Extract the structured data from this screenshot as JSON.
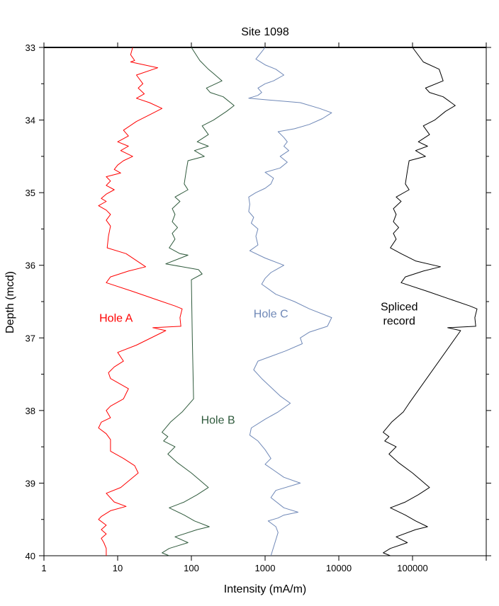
{
  "chart_data": {
    "type": "line",
    "title": "Site 1098",
    "xlabel": "Intensity (mA/m)",
    "ylabel": "Depth (mcd)",
    "x_scale": "log",
    "xlim": [
      1,
      1000000
    ],
    "ylim": [
      33,
      40
    ],
    "y_inverted": true,
    "x_ticks": [
      {
        "value": 1,
        "label": "1"
      },
      {
        "value": 10,
        "label": "10"
      },
      {
        "value": 100,
        "label": "100"
      },
      {
        "value": 1000,
        "label": "1000"
      },
      {
        "value": 10000,
        "label": "10000"
      },
      {
        "value": 100000,
        "label": "100000"
      },
      {
        "value": 1000000,
        "label": ""
      }
    ],
    "y_ticks": [
      {
        "value": 33,
        "label": "33"
      },
      {
        "value": 34,
        "label": "34"
      },
      {
        "value": 35,
        "label": "35"
      },
      {
        "value": 36,
        "label": "36"
      },
      {
        "value": 37,
        "label": "37"
      },
      {
        "value": 38,
        "label": "38"
      },
      {
        "value": 39,
        "label": "39"
      },
      {
        "value": 40,
        "label": "40"
      }
    ],
    "grid": false,
    "series": [
      {
        "name": "Hole A",
        "color": "#ff0000",
        "label_pos": {
          "x": 9.5,
          "y": 36.78
        },
        "points": [
          [
            16,
            33.0
          ],
          [
            15,
            33.1
          ],
          [
            17,
            33.18
          ],
          [
            15,
            33.2
          ],
          [
            35,
            33.28
          ],
          [
            18,
            33.38
          ],
          [
            22,
            33.5
          ],
          [
            19,
            33.56
          ],
          [
            23,
            33.64
          ],
          [
            18,
            33.7
          ],
          [
            27,
            33.76
          ],
          [
            40,
            33.84
          ],
          [
            28,
            33.92
          ],
          [
            18,
            34.02
          ],
          [
            12,
            34.14
          ],
          [
            14,
            34.22
          ],
          [
            10,
            34.3
          ],
          [
            14,
            34.36
          ],
          [
            11,
            34.42
          ],
          [
            16,
            34.5
          ],
          [
            12,
            34.56
          ],
          [
            10,
            34.62
          ],
          [
            9,
            34.68
          ],
          [
            11,
            34.73
          ],
          [
            7,
            34.78
          ],
          [
            8,
            34.84
          ],
          [
            7,
            34.9
          ],
          [
            9,
            34.96
          ],
          [
            7,
            35.02
          ],
          [
            6,
            35.08
          ],
          [
            7,
            35.12
          ],
          [
            5.5,
            35.18
          ],
          [
            7,
            35.24
          ],
          [
            8,
            35.3
          ],
          [
            7,
            35.38
          ],
          [
            8,
            35.46
          ],
          [
            7.5,
            35.6
          ],
          [
            7.2,
            35.76
          ],
          [
            13,
            35.84
          ],
          [
            24,
            36.02
          ],
          [
            14,
            36.08
          ],
          [
            8,
            36.16
          ],
          [
            7,
            36.24
          ],
          [
            16,
            36.36
          ],
          [
            35,
            36.48
          ],
          [
            60,
            36.56
          ],
          [
            75,
            36.6
          ],
          [
            70,
            36.72
          ],
          [
            72,
            36.84
          ],
          [
            30,
            36.86
          ],
          [
            45,
            36.9
          ],
          [
            18,
            37.1
          ],
          [
            10,
            37.2
          ],
          [
            12,
            37.32
          ],
          [
            9,
            37.4
          ],
          [
            7.5,
            37.48
          ],
          [
            8,
            37.56
          ],
          [
            14,
            37.7
          ],
          [
            12,
            37.84
          ],
          [
            8,
            37.94
          ],
          [
            7,
            38.0
          ],
          [
            8,
            38.1
          ],
          [
            6,
            38.16
          ],
          [
            5.5,
            38.24
          ],
          [
            7,
            38.32
          ],
          [
            8,
            38.4
          ],
          [
            8,
            38.56
          ],
          [
            12,
            38.66
          ],
          [
            17,
            38.76
          ],
          [
            19,
            38.86
          ],
          [
            11,
            39.06
          ],
          [
            7,
            39.14
          ],
          [
            9,
            39.26
          ],
          [
            13,
            39.32
          ],
          [
            8,
            39.38
          ],
          [
            6,
            39.46
          ],
          [
            5.5,
            39.5
          ],
          [
            7,
            39.58
          ],
          [
            6,
            39.64
          ],
          [
            7,
            39.7
          ],
          [
            6,
            39.76
          ],
          [
            6.5,
            39.82
          ],
          [
            7,
            39.9
          ],
          [
            7,
            40.0
          ]
        ]
      },
      {
        "name": "Hole B",
        "color": "#2f5a3c",
        "label_pos": {
          "x": 230,
          "y": 38.18
        },
        "points": [
          [
            100,
            33.0
          ],
          [
            130,
            33.18
          ],
          [
            170,
            33.3
          ],
          [
            200,
            33.36
          ],
          [
            260,
            33.46
          ],
          [
            160,
            33.56
          ],
          [
            180,
            33.62
          ],
          [
            270,
            33.68
          ],
          [
            380,
            33.8
          ],
          [
            300,
            33.88
          ],
          [
            200,
            34.0
          ],
          [
            140,
            34.08
          ],
          [
            170,
            34.2
          ],
          [
            120,
            34.3
          ],
          [
            170,
            34.36
          ],
          [
            110,
            34.42
          ],
          [
            150,
            34.5
          ],
          [
            90,
            34.56
          ],
          [
            85,
            34.7
          ],
          [
            80,
            34.88
          ],
          [
            90,
            34.96
          ],
          [
            60,
            35.06
          ],
          [
            70,
            35.12
          ],
          [
            55,
            35.22
          ],
          [
            60,
            35.3
          ],
          [
            55,
            35.4
          ],
          [
            65,
            35.48
          ],
          [
            55,
            35.56
          ],
          [
            60,
            35.64
          ],
          [
            50,
            35.76
          ],
          [
            70,
            35.84
          ],
          [
            90,
            35.86
          ],
          [
            45,
            35.98
          ],
          [
            125,
            36.06
          ],
          [
            140,
            36.12
          ],
          [
            100,
            36.2
          ],
          [
            103,
            37.0
          ],
          [
            107,
            37.84
          ],
          [
            75,
            38.02
          ],
          [
            52,
            38.16
          ],
          [
            40,
            38.3
          ],
          [
            48,
            38.36
          ],
          [
            42,
            38.42
          ],
          [
            60,
            38.5
          ],
          [
            48,
            38.6
          ],
          [
            65,
            38.72
          ],
          [
            100,
            38.86
          ],
          [
            130,
            38.96
          ],
          [
            170,
            39.06
          ],
          [
            120,
            39.16
          ],
          [
            80,
            39.26
          ],
          [
            50,
            39.34
          ],
          [
            80,
            39.44
          ],
          [
            110,
            39.52
          ],
          [
            175,
            39.6
          ],
          [
            120,
            39.64
          ],
          [
            60,
            39.74
          ],
          [
            90,
            39.82
          ],
          [
            50,
            39.9
          ],
          [
            40,
            39.96
          ],
          [
            50,
            40.0
          ]
        ]
      },
      {
        "name": "Hole C",
        "color": "#6f88b7",
        "label_pos": {
          "x": 1200,
          "y": 36.72
        },
        "points": [
          [
            1000,
            33.0
          ],
          [
            900,
            33.06
          ],
          [
            750,
            33.16
          ],
          [
            1000,
            33.24
          ],
          [
            1400,
            33.3
          ],
          [
            1800,
            33.38
          ],
          [
            1300,
            33.46
          ],
          [
            1000,
            33.5
          ],
          [
            800,
            33.56
          ],
          [
            900,
            33.62
          ],
          [
            800,
            33.66
          ],
          [
            600,
            33.7
          ],
          [
            3000,
            33.76
          ],
          [
            5500,
            33.84
          ],
          [
            8000,
            33.9
          ],
          [
            6000,
            33.98
          ],
          [
            4000,
            34.06
          ],
          [
            2500,
            34.12
          ],
          [
            1500,
            34.16
          ],
          [
            1800,
            34.24
          ],
          [
            2000,
            34.3
          ],
          [
            1800,
            34.36
          ],
          [
            2100,
            34.42
          ],
          [
            1600,
            34.5
          ],
          [
            2000,
            34.58
          ],
          [
            1600,
            34.66
          ],
          [
            1000,
            34.72
          ],
          [
            1300,
            34.8
          ],
          [
            1200,
            34.88
          ],
          [
            1000,
            34.94
          ],
          [
            750,
            35.0
          ],
          [
            600,
            35.06
          ],
          [
            620,
            35.16
          ],
          [
            600,
            35.26
          ],
          [
            700,
            35.34
          ],
          [
            650,
            35.42
          ],
          [
            800,
            35.5
          ],
          [
            750,
            35.6
          ],
          [
            800,
            35.72
          ],
          [
            620,
            35.8
          ],
          [
            1000,
            35.9
          ],
          [
            1800,
            36.0
          ],
          [
            1200,
            36.1
          ],
          [
            1000,
            36.18
          ],
          [
            900,
            36.26
          ],
          [
            1400,
            36.4
          ],
          [
            2500,
            36.5
          ],
          [
            4000,
            36.6
          ],
          [
            8000,
            36.72
          ],
          [
            7000,
            36.84
          ],
          [
            4000,
            36.92
          ],
          [
            3000,
            37.0
          ],
          [
            3200,
            37.08
          ],
          [
            1900,
            37.18
          ],
          [
            800,
            37.32
          ],
          [
            700,
            37.44
          ],
          [
            900,
            37.56
          ],
          [
            1200,
            37.68
          ],
          [
            1600,
            37.8
          ],
          [
            2200,
            37.9
          ],
          [
            1500,
            38.02
          ],
          [
            1000,
            38.12
          ],
          [
            650,
            38.24
          ],
          [
            620,
            38.34
          ],
          [
            800,
            38.42
          ],
          [
            1000,
            38.54
          ],
          [
            1200,
            38.66
          ],
          [
            1000,
            38.74
          ],
          [
            1300,
            38.82
          ],
          [
            1800,
            38.92
          ],
          [
            3000,
            39.0
          ],
          [
            1400,
            39.1
          ],
          [
            1200,
            39.2
          ],
          [
            1800,
            39.34
          ],
          [
            2800,
            39.4
          ],
          [
            1800,
            39.44
          ],
          [
            1500,
            39.48
          ],
          [
            1100,
            39.52
          ],
          [
            1400,
            39.6
          ],
          [
            1500,
            39.68
          ],
          [
            1400,
            39.78
          ],
          [
            1200,
            40.0
          ]
        ]
      },
      {
        "name": "Spliced record",
        "label_lines": [
          "Spliced",
          "record"
        ],
        "color": "#000000",
        "label_pos": {
          "x": 66000,
          "y": 36.72
        },
        "points": [
          [
            100000,
            33.0
          ],
          [
            140000,
            33.2
          ],
          [
            230000,
            33.3
          ],
          [
            260000,
            33.46
          ],
          [
            150000,
            33.56
          ],
          [
            170000,
            33.62
          ],
          [
            260000,
            33.68
          ],
          [
            380000,
            33.8
          ],
          [
            280000,
            33.88
          ],
          [
            200000,
            34.0
          ],
          [
            140000,
            34.08
          ],
          [
            170000,
            34.2
          ],
          [
            120000,
            34.3
          ],
          [
            160000,
            34.36
          ],
          [
            110000,
            34.42
          ],
          [
            150000,
            34.5
          ],
          [
            90000,
            34.56
          ],
          [
            85000,
            34.7
          ],
          [
            80000,
            34.88
          ],
          [
            90000,
            34.96
          ],
          [
            60000,
            35.06
          ],
          [
            70000,
            35.12
          ],
          [
            55000,
            35.22
          ],
          [
            60000,
            35.3
          ],
          [
            55000,
            35.4
          ],
          [
            65000,
            35.48
          ],
          [
            55000,
            35.56
          ],
          [
            60000,
            35.64
          ],
          [
            50000,
            35.76
          ],
          [
            70000,
            35.84
          ],
          [
            110000,
            35.94
          ],
          [
            240000,
            36.02
          ],
          [
            140000,
            36.08
          ],
          [
            80000,
            36.16
          ],
          [
            70000,
            36.24
          ],
          [
            160000,
            36.36
          ],
          [
            350000,
            36.48
          ],
          [
            600000,
            36.56
          ],
          [
            750000,
            36.6
          ],
          [
            700000,
            36.72
          ],
          [
            720000,
            36.84
          ],
          [
            300000,
            36.86
          ],
          [
            450000,
            36.9
          ],
          [
            90000,
            37.9
          ],
          [
            75000,
            38.02
          ],
          [
            52000,
            38.16
          ],
          [
            40000,
            38.3
          ],
          [
            48000,
            38.36
          ],
          [
            42000,
            38.42
          ],
          [
            60000,
            38.5
          ],
          [
            48000,
            38.6
          ],
          [
            65000,
            38.72
          ],
          [
            100000,
            38.86
          ],
          [
            130000,
            38.96
          ],
          [
            170000,
            39.06
          ],
          [
            120000,
            39.16
          ],
          [
            80000,
            39.26
          ],
          [
            50000,
            39.34
          ],
          [
            80000,
            39.44
          ],
          [
            110000,
            39.52
          ],
          [
            160000,
            39.6
          ],
          [
            110000,
            39.64
          ],
          [
            60000,
            39.74
          ],
          [
            85000,
            39.82
          ],
          [
            50000,
            39.9
          ],
          [
            40000,
            39.96
          ],
          [
            50000,
            40.0
          ]
        ]
      }
    ]
  }
}
